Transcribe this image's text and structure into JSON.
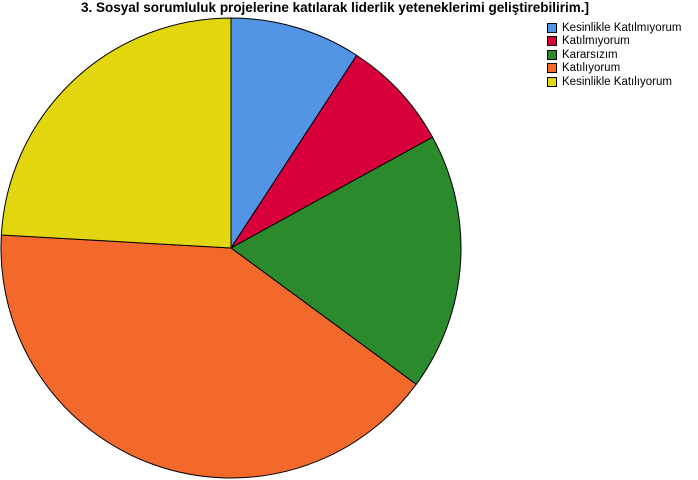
{
  "chart_data": {
    "type": "pie",
    "title": "3. Sosyal sorumluluk projelerine katılarak liderlik yeteneklerimi geliştirebilirim.]",
    "categories": [
      "Kesinlikle Katılmıyorum",
      "Katılmıyorum",
      "Kararsızım",
      "Katılıyorum",
      "Kesinlikle Katılıyorum"
    ],
    "values": [
      9.2,
      7.8,
      18.1,
      40.8,
      24.1
    ],
    "colors": [
      "#5295e5",
      "#d7003a",
      "#2b8a2b",
      "#f2692b",
      "#e2d60f"
    ],
    "legend_position": "top-right"
  }
}
